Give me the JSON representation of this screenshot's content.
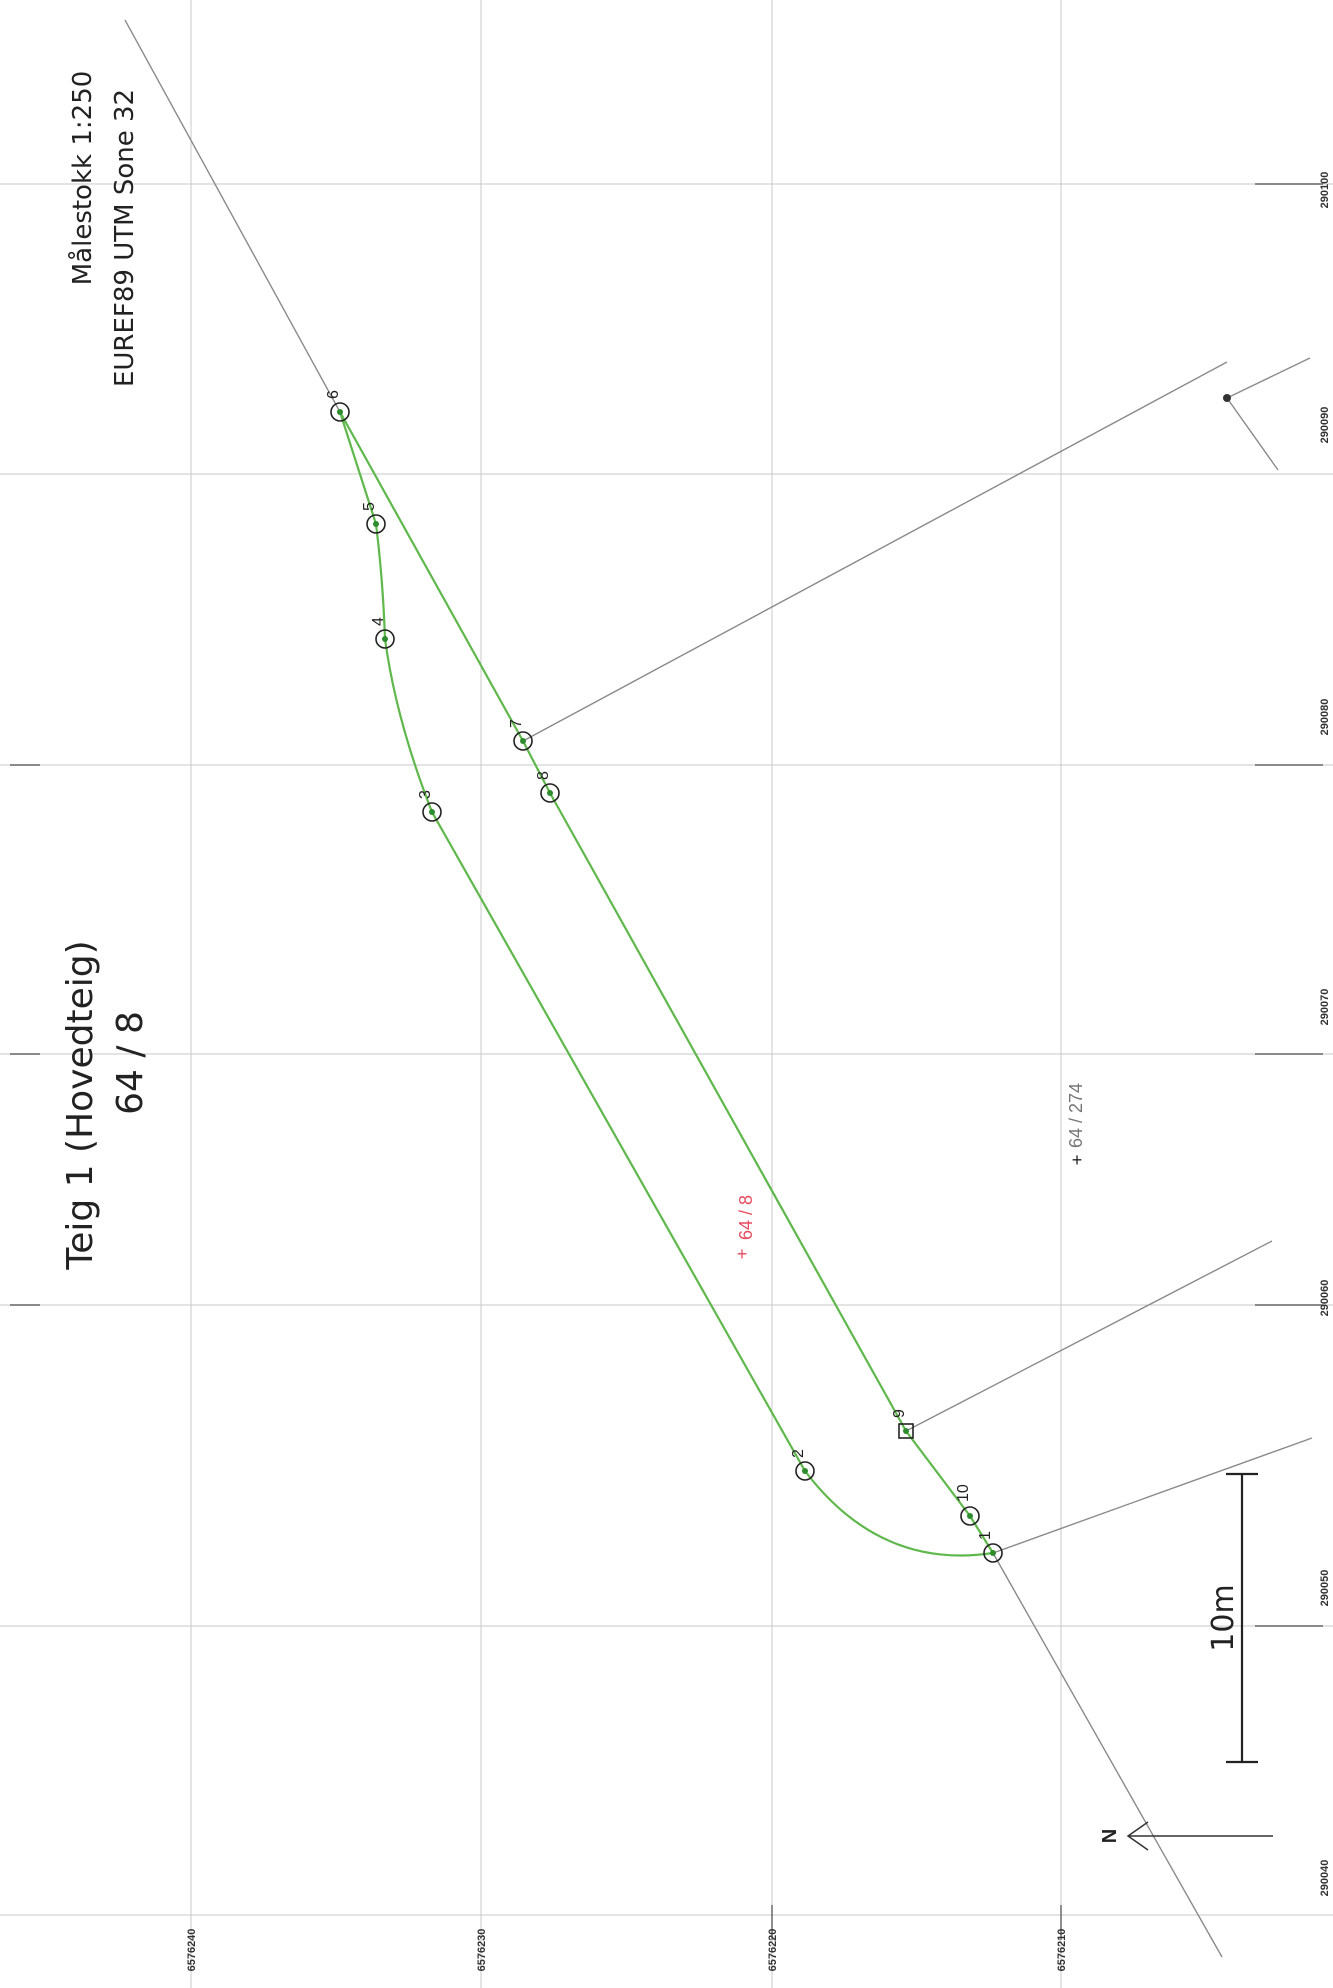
{
  "title": {
    "line1": "Teig 1 (Hovedteig)",
    "line2": "64 / 8"
  },
  "map_info": {
    "scale": "Målestokk 1:250",
    "crs": "EUREF89 UTM Sone 32"
  },
  "grid": {
    "easting_labels": [
      "290040",
      "290050",
      "290060",
      "290070",
      "290080",
      "290090",
      "290100"
    ],
    "northing_labels": [
      "6576240",
      "6576230",
      "6576220",
      "6576210"
    ]
  },
  "points": [
    {
      "id": "1",
      "label": "1",
      "shape": "circle"
    },
    {
      "id": "2",
      "label": "2",
      "shape": "circle"
    },
    {
      "id": "3",
      "label": "3",
      "shape": "circle"
    },
    {
      "id": "4",
      "label": "4",
      "shape": "circle"
    },
    {
      "id": "5",
      "label": "5",
      "shape": "circle"
    },
    {
      "id": "6",
      "label": "6",
      "shape": "circle"
    },
    {
      "id": "7",
      "label": "7",
      "shape": "circle"
    },
    {
      "id": "8",
      "label": "8",
      "shape": "circle"
    },
    {
      "id": "9",
      "label": "9",
      "shape": "square"
    },
    {
      "id": "10",
      "label": "10",
      "shape": "circle"
    }
  ],
  "parcels": {
    "main": "64 / 8",
    "neighbor": "64 / 274"
  },
  "scale_bar": {
    "label": "10m"
  },
  "north": {
    "label": "N"
  },
  "colors": {
    "boundary": "#5fb84b",
    "neighbor_lines": "#8a8a8a",
    "parcel_main": "#e84a5f",
    "parcel_neighbor": "#777777",
    "grid": "#c9c9c9"
  }
}
